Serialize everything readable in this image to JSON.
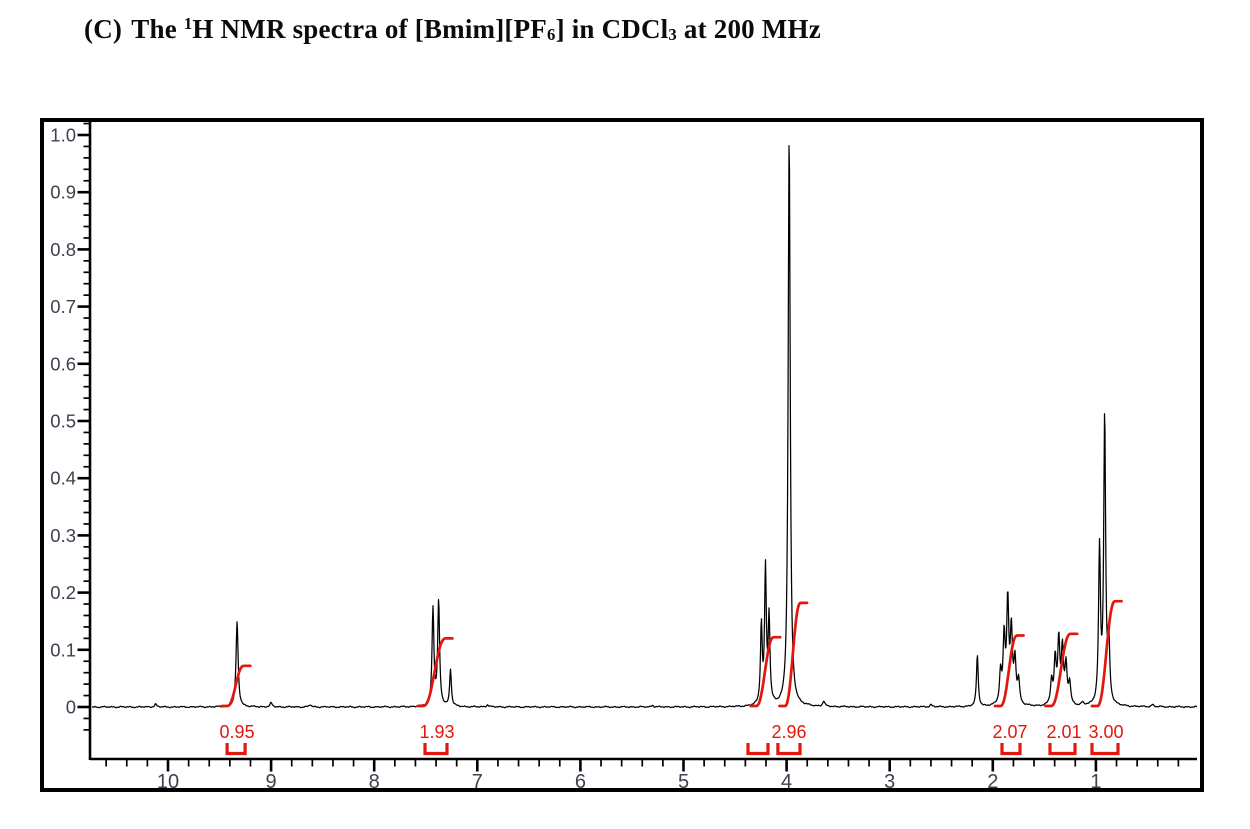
{
  "title": {
    "plain": "(C) The 1H NMR spectra of [Bmim][PF6] in CDCl3 at 200 MHz",
    "segments": [
      {
        "text": "(C)",
        "style": "normal",
        "gap_after": true
      },
      {
        "text": "The ",
        "style": "normal"
      },
      {
        "text": "1",
        "style": "sup"
      },
      {
        "text": "H NMR spectra of [Bmim][PF",
        "style": "normal"
      },
      {
        "text": "6",
        "style": "sub"
      },
      {
        "text": "] in CDCl",
        "style": "normal"
      },
      {
        "text": "3",
        "style": "sub"
      },
      {
        "text": " at 200 MHz",
        "style": "normal"
      }
    ]
  },
  "colors": {
    "integral_red": "#e2170d",
    "trace_ink": "#000000",
    "axis_label": "#3b4252",
    "background": "#ffffff"
  },
  "chart_data": {
    "type": "line",
    "chart_kind": "1H NMR spectrum",
    "title": "(C) The 1H NMR spectra of [Bmim][PF6] in CDCl3 at 200 MHz",
    "solvent": "CDCl3",
    "frequency": "200 MHz",
    "x_axis": {
      "unit": "ppm",
      "reversed": true,
      "range_ppm": [
        10.74,
        0.02
      ],
      "tick_values": [
        10,
        9,
        8,
        7,
        6,
        5,
        4,
        3,
        2,
        1
      ],
      "tick_labels": [
        "10",
        "9",
        "8",
        "7",
        "6",
        "5",
        "4",
        "3",
        "2",
        "1"
      ],
      "minor_step": 0.2,
      "minor_from": 10.6,
      "minor_to": 0.2
    },
    "y_axis": {
      "range": [
        0,
        1.0
      ],
      "tick_values": [
        1.0,
        0.9,
        0.8,
        0.7,
        0.6,
        0.5,
        0.4,
        0.3,
        0.2,
        0.1,
        0
      ],
      "tick_labels": [
        "1.0",
        "0.9",
        "0.8",
        "0.7",
        "0.6",
        "0.5",
        "0.4",
        "0.3",
        "0.2",
        "0.1",
        "0"
      ],
      "minor_step": 0.02,
      "minor_from": -0.04,
      "minor_to": 1.02
    },
    "peaks": [
      [
        9.33,
        0.149,
        0.012
      ],
      [
        7.43,
        0.17,
        0.011
      ],
      [
        7.375,
        0.182,
        0.011
      ],
      [
        7.26,
        0.065,
        0.01
      ],
      [
        4.245,
        0.138,
        0.01
      ],
      [
        4.205,
        0.235,
        0.01
      ],
      [
        4.17,
        0.15,
        0.01
      ],
      [
        3.975,
        1.0,
        0.012
      ],
      [
        2.15,
        0.09,
        0.01
      ],
      [
        1.925,
        0.055,
        0.012
      ],
      [
        1.89,
        0.115,
        0.012
      ],
      [
        1.855,
        0.178,
        0.012
      ],
      [
        1.82,
        0.125,
        0.012
      ],
      [
        1.785,
        0.075,
        0.012
      ],
      [
        1.75,
        0.042,
        0.012
      ],
      [
        1.43,
        0.042,
        0.012
      ],
      [
        1.395,
        0.078,
        0.012
      ],
      [
        1.36,
        0.112,
        0.012
      ],
      [
        1.325,
        0.096,
        0.012
      ],
      [
        1.29,
        0.068,
        0.012
      ],
      [
        1.255,
        0.038,
        0.012
      ],
      [
        0.965,
        0.268,
        0.011
      ],
      [
        0.915,
        0.503,
        0.011
      ],
      [
        0.875,
        0.105,
        0.011
      ]
    ],
    "noise_bumps": [
      [
        10.12,
        0.005,
        0.012
      ],
      [
        9.0,
        0.007,
        0.012
      ],
      [
        8.62,
        0.004,
        0.012
      ],
      [
        6.9,
        0.004,
        0.012
      ],
      [
        5.3,
        0.003,
        0.012
      ],
      [
        3.64,
        0.009,
        0.012
      ],
      [
        2.6,
        0.004,
        0.012
      ],
      [
        1.13,
        0.005,
        0.012
      ],
      [
        0.45,
        0.004,
        0.012
      ]
    ],
    "integral_curves": [
      {
        "from_ppm": 9.43,
        "to_ppm": 9.26,
        "max_height": 0.072
      },
      {
        "from_ppm": 7.53,
        "to_ppm": 7.3,
        "max_height": 0.12
      },
      {
        "from_ppm": 4.3,
        "to_ppm": 4.12,
        "max_height": 0.122
      },
      {
        "from_ppm": 4.02,
        "to_ppm": 3.86,
        "max_height": 0.182
      },
      {
        "from_ppm": 1.93,
        "to_ppm": 1.76,
        "max_height": 0.125
      },
      {
        "from_ppm": 1.44,
        "to_ppm": 1.24,
        "max_height": 0.128
      },
      {
        "from_ppm": 0.99,
        "to_ppm": 0.81,
        "max_height": 0.185
      }
    ],
    "integration_labels": [
      {
        "text": "0.95",
        "ppm": 9.33,
        "brackets": [
          [
            9.427,
            9.252
          ]
        ]
      },
      {
        "text": "1.93",
        "ppm": 7.391,
        "brackets": [
          [
            7.507,
            7.294
          ]
        ]
      },
      {
        "text": "2.96",
        "ppm": 3.977,
        "brackets": [
          [
            4.374,
            4.18
          ],
          [
            4.084,
            3.87
          ]
        ]
      },
      {
        "text": "2.07",
        "ppm": 1.833,
        "brackets": [
          [
            1.911,
            1.736
          ]
        ]
      },
      {
        "text": "2.01",
        "ppm": 1.309,
        "brackets": [
          [
            1.445,
            1.203
          ]
        ]
      },
      {
        "text": "3.00",
        "ppm": 0.902,
        "brackets": [
          [
            1.038,
            0.786
          ]
        ]
      }
    ]
  }
}
